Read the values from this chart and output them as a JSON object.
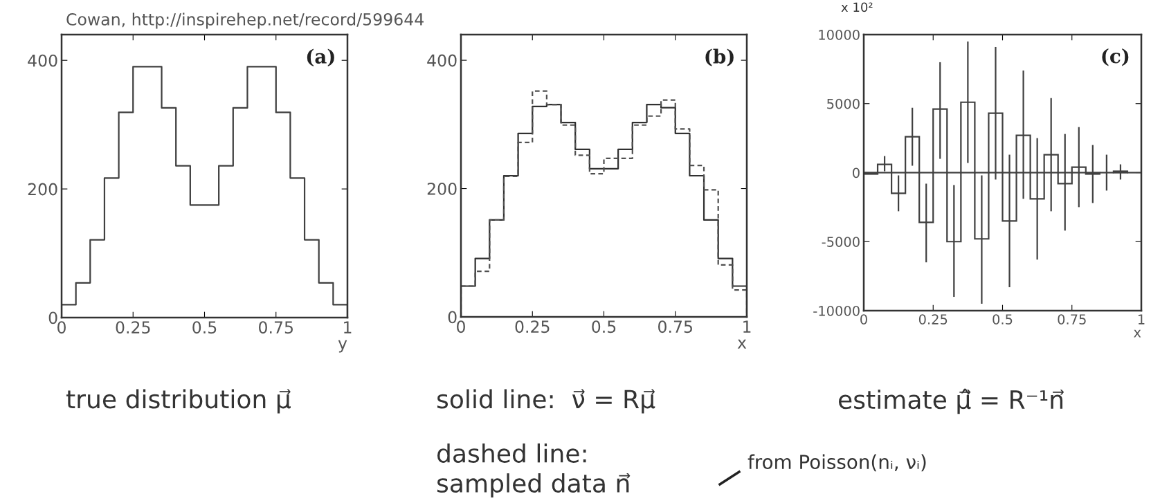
{
  "chart_data": [
    {
      "type": "histogram",
      "xlabel": "y",
      "bins": [
        0,
        0.05,
        0.1,
        0.15,
        0.2,
        0.25,
        0.3,
        0.35,
        0.4,
        0.45,
        0.5,
        0.55,
        0.6,
        0.65,
        0.7,
        0.75,
        0.8,
        0.85,
        0.9,
        0.95,
        1
      ],
      "values": [
        20,
        54,
        121,
        217,
        319,
        390,
        390,
        326,
        236,
        175,
        175,
        236,
        326,
        390,
        390,
        319,
        217,
        121,
        54,
        20
      ],
      "color": "#404040",
      "xlim": [
        0,
        1
      ],
      "xticks": [
        0,
        0.25,
        0.5,
        0.75,
        1
      ],
      "ylim": [
        0,
        440
      ],
      "yticks": [
        0,
        200,
        400
      ],
      "annotations": [
        "Cowan, http://inspirehep.net/record/599644",
        "(a)",
        "true distribution μ⃗"
      ]
    },
    {
      "type": "histogram",
      "xlabel": "x",
      "bins": [
        0,
        0.05,
        0.1,
        0.15,
        0.2,
        0.25,
        0.3,
        0.35,
        0.4,
        0.45,
        0.5,
        0.55,
        0.6,
        0.65,
        0.7,
        0.75,
        0.8,
        0.85,
        0.9,
        0.95,
        1
      ],
      "series": [
        {
          "color": "#303030",
          "line_style": "solid",
          "values": [
            48,
            91,
            151,
            220,
            286,
            328,
            331,
            303,
            261,
            231,
            231,
            261,
            303,
            331,
            326,
            286,
            220,
            151,
            91,
            48
          ]
        },
        {
          "color": "#505050",
          "line_style": "dashed",
          "values": [
            48,
            71,
            151,
            219,
            272,
            352,
            331,
            299,
            252,
            223,
            247,
            247,
            299,
            313,
            338,
            293,
            236,
            198,
            81,
            42
          ]
        }
      ],
      "xlim": [
        0,
        1
      ],
      "xticks": [
        0,
        0.25,
        0.5,
        0.75,
        1
      ],
      "ylim": [
        0,
        440
      ],
      "yticks": [
        0,
        200,
        400
      ],
      "annotations": [
        "(b)",
        "solid line:  ν⃗ = Rμ⃗",
        "dashed line:\nsampled data n⃗",
        "from Poisson(nᵢ, νᵢ)"
      ]
    },
    {
      "type": "histogram",
      "xlabel": "x",
      "bins": [
        0,
        0.05,
        0.1,
        0.15,
        0.2,
        0.25,
        0.3,
        0.35,
        0.4,
        0.45,
        0.5,
        0.55,
        0.6,
        0.65,
        0.7,
        0.75,
        0.8,
        0.85,
        0.9,
        0.95,
        1
      ],
      "values": [
        -100,
        600,
        -1500,
        2600,
        -3600,
        4600,
        -5000,
        5100,
        -4800,
        4300,
        -3500,
        2700,
        -1900,
        1300,
        -800,
        400,
        -100,
        0,
        100,
        0
      ],
      "errors": [
        null,
        [
          100,
          1200
        ],
        [
          -2800,
          -200
        ],
        [
          500,
          4700
        ],
        [
          -6500,
          -800
        ],
        [
          1000,
          8000
        ],
        [
          -9000,
          -900
        ],
        [
          700,
          9500
        ],
        [
          -9500,
          -200
        ],
        [
          -500,
          9100
        ],
        [
          -8300,
          1300
        ],
        [
          -1900,
          7400
        ],
        [
          -6300,
          2500
        ],
        [
          -2800,
          5400
        ],
        [
          -4200,
          2800
        ],
        [
          -2500,
          3300
        ],
        [
          -2200,
          2000
        ],
        [
          -1300,
          1300
        ],
        [
          -500,
          600
        ],
        null
      ],
      "color": "#404040",
      "xlim": [
        0,
        1
      ],
      "xticks": [
        0,
        0.25,
        0.5,
        0.75,
        1
      ],
      "ylim": [
        -10000,
        10000
      ],
      "yticks": [
        -10000,
        -5000,
        0,
        5000,
        10000
      ],
      "ref_lines": [
        {
          "axis": "y",
          "value": 0,
          "color": "#404040"
        }
      ],
      "annotations": [
        "(c)",
        "x 10²",
        "estimate μ̂⃗ = R⁻¹n⃗"
      ]
    }
  ]
}
